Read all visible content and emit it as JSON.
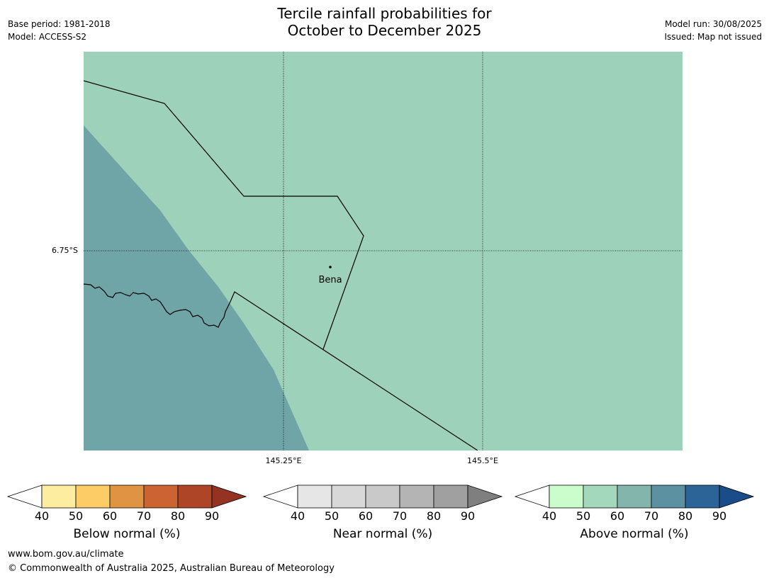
{
  "title": {
    "line1": "Tercile rainfall probabilities for",
    "line2": "October to December 2025"
  },
  "meta": {
    "base_period": "Base period: 1981-2018",
    "model": "Model: ACCESS-S2",
    "model_run": "Model run: 30/08/2025",
    "issued": "Issued: Map not issued"
  },
  "map": {
    "lat_label": "6.75°S",
    "lon_labels": [
      "145.25°E",
      "145.5°E"
    ],
    "place": "Bena",
    "colors": {
      "above_50_60": "#9ed1b9",
      "above_60_70": "#6fa5a7",
      "coastline": "#000000",
      "border": "#000000"
    }
  },
  "colorbars": [
    {
      "label": "Below normal (%)",
      "ticks": [
        "40",
        "50",
        "60",
        "70",
        "80",
        "90"
      ],
      "colors": [
        "#ffffff",
        "#fdeda0",
        "#fdcc66",
        "#e19344",
        "#cb6332",
        "#ad4526",
        "#943322"
      ]
    },
    {
      "label": "Near normal (%)",
      "ticks": [
        "40",
        "50",
        "60",
        "70",
        "80",
        "90"
      ],
      "colors": [
        "#ffffff",
        "#e6e6e6",
        "#d8d8d8",
        "#c9c9c9",
        "#b4b4b4",
        "#a0a0a0",
        "#7f7f7f"
      ]
    },
    {
      "label": "Above normal (%)",
      "ticks": [
        "40",
        "50",
        "60",
        "70",
        "80",
        "90"
      ],
      "colors": [
        "#ffffff",
        "#cbfdcc",
        "#a3d8bc",
        "#83b5ad",
        "#5b91a0",
        "#2d6498",
        "#194c88"
      ]
    }
  ],
  "footer": {
    "website": "www.bom.gov.au/climate",
    "copyright": "© Commonwealth of Australia 2025, Australian Bureau of Meteorology"
  }
}
